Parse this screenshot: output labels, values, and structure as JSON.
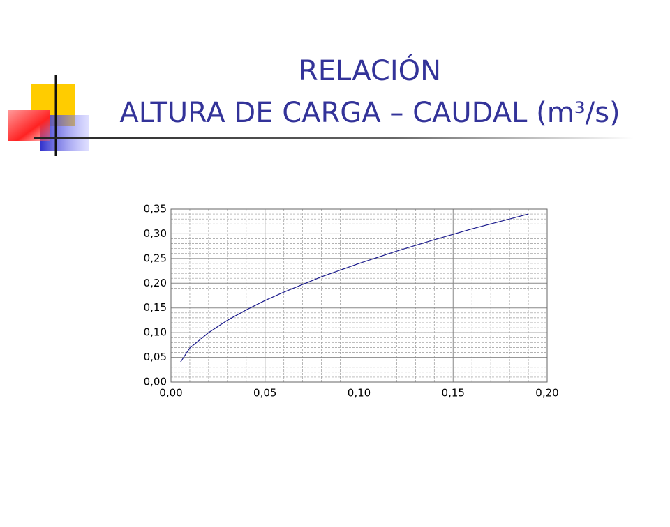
{
  "chart_data": {
    "type": "line",
    "title": "RELACIÓN",
    "subtitle": "ALTURA DE CARGA – CAUDAL (m³/s)",
    "x": [
      0.005,
      0.01,
      0.02,
      0.03,
      0.04,
      0.05,
      0.06,
      0.08,
      0.1,
      0.12,
      0.14,
      0.16,
      0.18,
      0.19
    ],
    "series": [
      {
        "color": "#1a1a8c",
        "values": [
          0.04,
          0.069,
          0.1,
          0.125,
          0.146,
          0.165,
          0.182,
          0.213,
          0.24,
          0.265,
          0.288,
          0.31,
          0.33,
          0.34
        ]
      }
    ],
    "xlim": [
      0,
      0.2
    ],
    "ylim": [
      0,
      0.35
    ],
    "xticks": [
      {
        "value": 0,
        "label": "0,00"
      },
      {
        "value": 0.05,
        "label": "0,05"
      },
      {
        "value": 0.1,
        "label": "0,10"
      },
      {
        "value": 0.15,
        "label": "0,15"
      },
      {
        "value": 0.2,
        "label": "0,20"
      }
    ],
    "yticks": [
      {
        "value": 0,
        "label": "0,00"
      },
      {
        "value": 0.05,
        "label": "0,05"
      },
      {
        "value": 0.1,
        "label": "0,10"
      },
      {
        "value": 0.15,
        "label": "0,15"
      },
      {
        "value": 0.2,
        "label": "0,20"
      },
      {
        "value": 0.25,
        "label": "0,25"
      },
      {
        "value": 0.3,
        "label": "0,30"
      },
      {
        "value": 0.35,
        "label": "0,35"
      }
    ],
    "grid": true
  }
}
